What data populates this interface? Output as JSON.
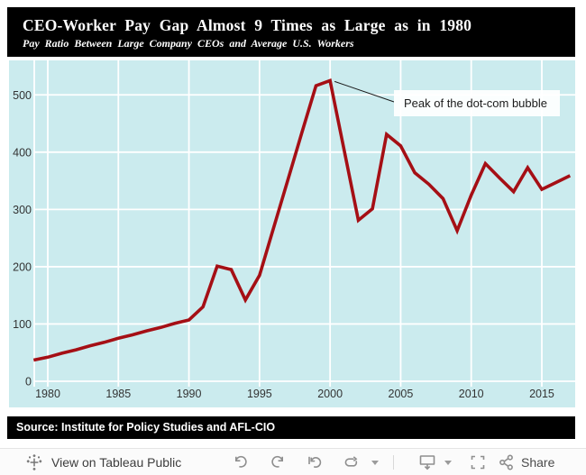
{
  "title_bar": {
    "title": "CEO-Worker Pay Gap Almost 9 Times as Large as in 1980",
    "subtitle": "Pay Ratio Between Large Company CEOs and Average U.S. Workers",
    "background": "#000000",
    "text_color": "#ffffff"
  },
  "chart_data": {
    "type": "line",
    "title": "CEO-Worker Pay Gap Almost 9 Times as Large as in 1980",
    "subtitle": "Pay Ratio Between Large Company CEOs and Average U.S. Workers",
    "xlabel": "",
    "ylabel": "",
    "x": [
      1979,
      1980,
      1981,
      1982,
      1983,
      1984,
      1985,
      1986,
      1987,
      1988,
      1989,
      1990,
      1991,
      1992,
      1993,
      1994,
      1995,
      1996,
      1997,
      1998,
      1999,
      2000,
      2001,
      2002,
      2003,
      2004,
      2005,
      2006,
      2007,
      2008,
      2009,
      2010,
      2011,
      2012,
      2013,
      2014,
      2015,
      2016,
      2017
    ],
    "values": [
      37,
      42,
      49,
      55,
      62,
      68,
      75,
      81,
      88,
      94,
      101,
      107,
      130,
      201,
      195,
      142,
      185,
      268,
      351,
      434,
      516,
      525,
      403,
      281,
      301,
      431,
      411,
      364,
      344,
      319,
      263,
      325,
      380,
      355,
      331,
      373,
      335,
      347,
      359
    ],
    "x_ticks": [
      1980,
      1985,
      1990,
      1995,
      2000,
      2005,
      2010,
      2015
    ],
    "y_ticks": [
      0,
      100,
      200,
      300,
      400,
      500
    ],
    "xlim": [
      1978.9,
      2017.3
    ],
    "ylim": [
      0,
      560
    ],
    "grid": true,
    "legend": "none",
    "background": "#cbebee",
    "gridline_color": "#ffffff",
    "tick_label_color": "#333333",
    "line_color": "#a50f15",
    "annotation": {
      "text": "Peak of the dot-com bubble",
      "target_year": 2000,
      "target_value": 525,
      "connector_color": "#1a1a1a"
    }
  },
  "source_bar": {
    "text": "Source: Institute for Policy Studies and AFL-CIO",
    "background": "#000000"
  },
  "toolbar": {
    "view_label": "View on Tableau Public",
    "share_label": "Share",
    "icons": [
      "tableau-logo-icon",
      "undo-icon",
      "redo-icon",
      "revert-icon",
      "refresh-icon",
      "dropdown-caret-icon",
      "download-icon",
      "download-caret-icon",
      "fullscreen-icon",
      "share-icon"
    ]
  }
}
